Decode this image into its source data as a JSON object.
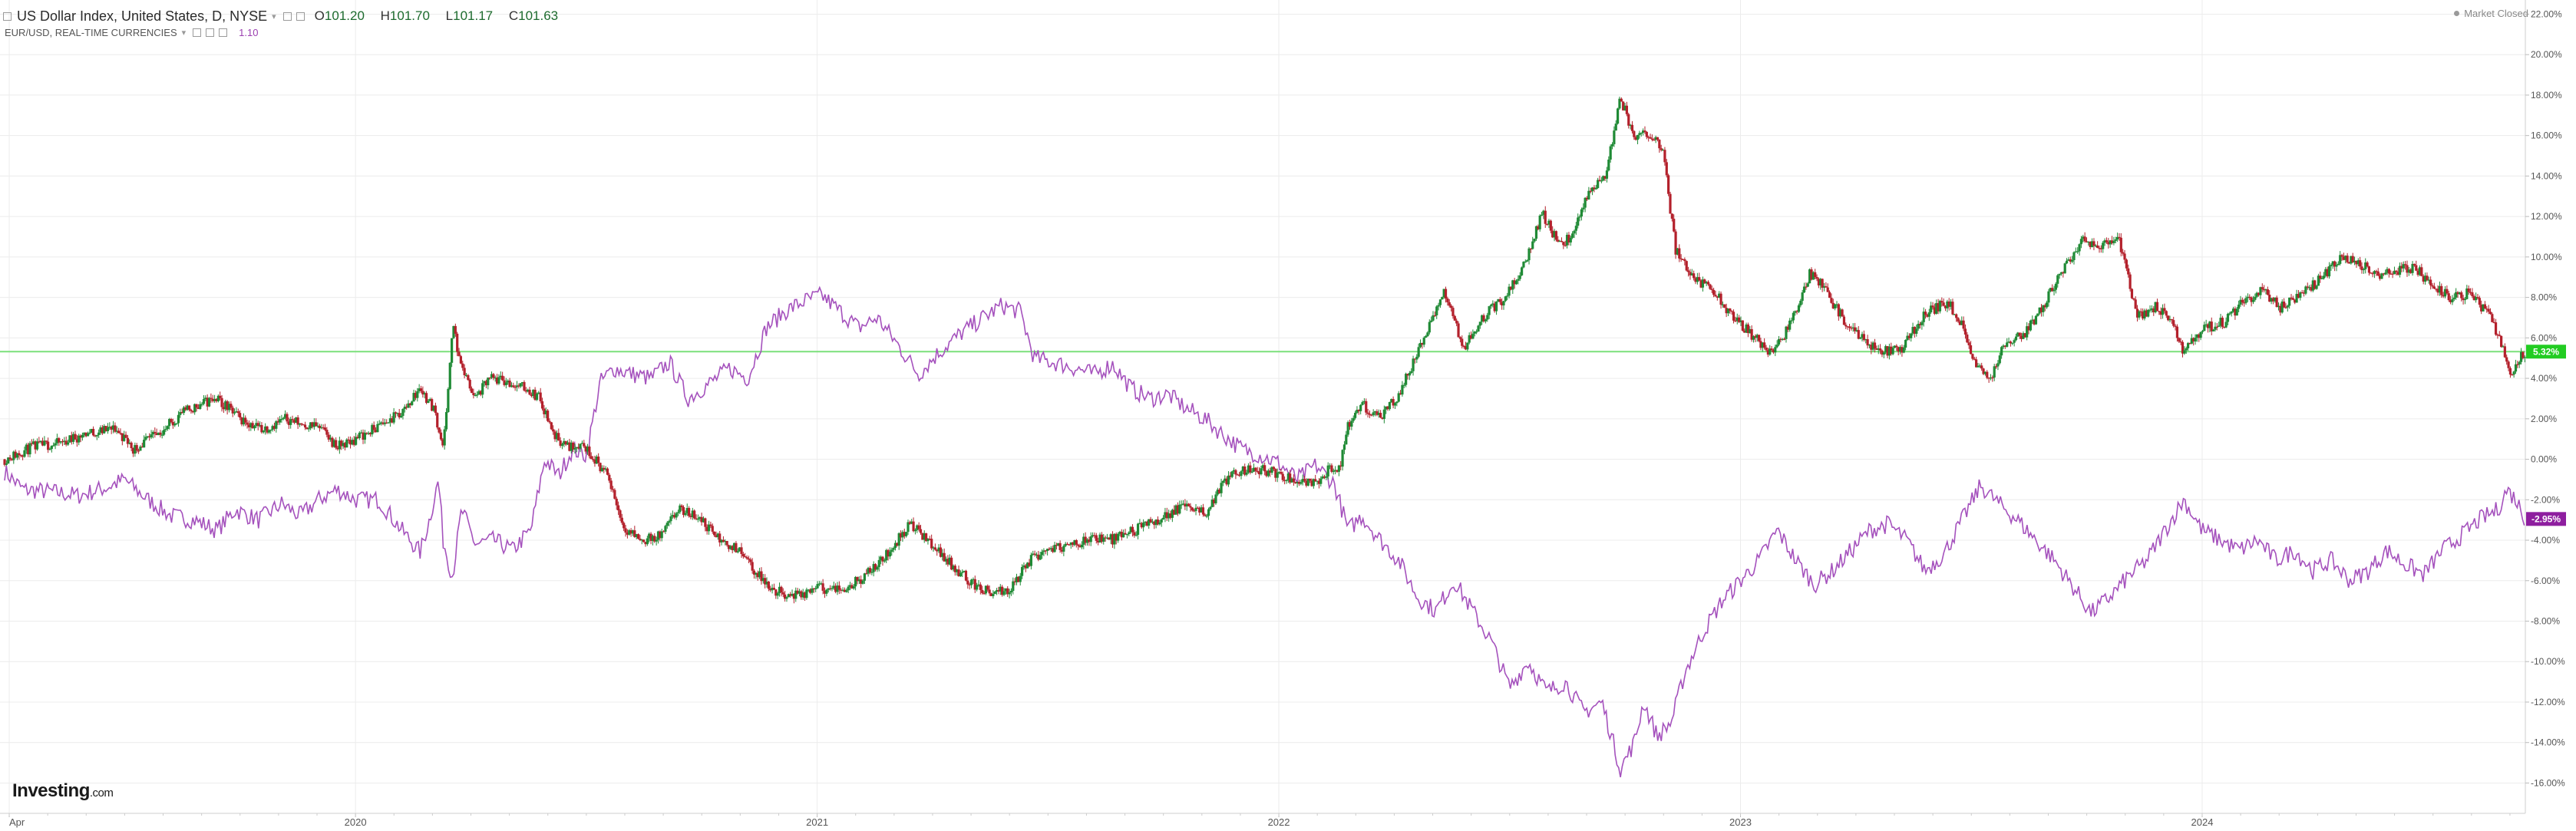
{
  "header": {
    "title": "US Dollar Index, United States, D, NYSE",
    "open_label": "O",
    "open": "101.20",
    "high_label": "H",
    "high": "101.70",
    "low_label": "L",
    "low": "101.17",
    "close_label": "C",
    "close": "101.63",
    "secondary_title": "EUR/USD, REAL-TIME CURRENCIES",
    "secondary_value": "1.10"
  },
  "status": {
    "market": "Market Closed"
  },
  "brand": {
    "name": "Investing",
    "suffix": ".com"
  },
  "colors": {
    "up": "#1f8a35",
    "down": "#b3202b",
    "eurusd": "#a552bd",
    "current_line": "#7be07b",
    "badge_dxy": "#22cc22",
    "badge_eur": "#8e1e9f",
    "grid": "#ececec"
  },
  "chart_data": {
    "type": "line",
    "y_axis": {
      "unit": "%",
      "ylim": [
        -17.5,
        22.7
      ],
      "ticks": [
        "22.00%",
        "20.00%",
        "18.00%",
        "16.00%",
        "14.00%",
        "12.00%",
        "10.00%",
        "8.00%",
        "6.00%",
        "4.00%",
        "2.00%",
        "0.00%",
        "-2.00%",
        "-4.00%",
        "-6.00%",
        "-8.00%",
        "-10.00%",
        "-12.00%",
        "-14.00%",
        "-16.00%"
      ],
      "tick_values": [
        22,
        20,
        18,
        16,
        14,
        12,
        10,
        8,
        6,
        4,
        2,
        0,
        -2,
        -4,
        -6,
        -8,
        -10,
        -12,
        -14,
        -16
      ],
      "position": "right"
    },
    "x_axis": {
      "labels": [
        "Apr",
        "2020",
        "2021",
        "2022",
        "2023",
        "2024"
      ],
      "label_dates": [
        2019.25,
        2020.0,
        2021.0,
        2022.0,
        2023.0,
        2024.0
      ],
      "xlim": [
        2019.23,
        2024.7
      ]
    },
    "grid": true,
    "series": [
      {
        "name": "US Dollar Index",
        "style": "candlestick",
        "points": [
          [
            2019.24,
            0.0
          ],
          [
            2019.3,
            0.6
          ],
          [
            2019.36,
            0.8
          ],
          [
            2019.42,
            1.3
          ],
          [
            2019.48,
            1.5
          ],
          [
            2019.52,
            0.5
          ],
          [
            2019.57,
            1.2
          ],
          [
            2019.62,
            2.2
          ],
          [
            2019.66,
            2.7
          ],
          [
            2019.7,
            3.0
          ],
          [
            2019.75,
            2.0
          ],
          [
            2019.8,
            1.5
          ],
          [
            2019.85,
            2.0
          ],
          [
            2019.88,
            1.8
          ],
          [
            2019.92,
            1.6
          ],
          [
            2019.96,
            0.6
          ],
          [
            2020.0,
            1.0
          ],
          [
            2020.05,
            1.6
          ],
          [
            2020.1,
            2.3
          ],
          [
            2020.14,
            3.5
          ],
          [
            2020.17,
            2.5
          ],
          [
            2020.19,
            0.6
          ],
          [
            2020.2,
            3.0
          ],
          [
            2020.21,
            6.7
          ],
          [
            2020.23,
            4.5
          ],
          [
            2020.26,
            3.0
          ],
          [
            2020.29,
            4.0
          ],
          [
            2020.33,
            3.8
          ],
          [
            2020.37,
            3.5
          ],
          [
            2020.4,
            3.0
          ],
          [
            2020.43,
            1.2
          ],
          [
            2020.46,
            0.6
          ],
          [
            2020.49,
            0.8
          ],
          [
            2020.52,
            0.0
          ],
          [
            2020.55,
            -1.0
          ],
          [
            2020.58,
            -3.3
          ],
          [
            2020.62,
            -4.0
          ],
          [
            2020.66,
            -3.8
          ],
          [
            2020.7,
            -2.5
          ],
          [
            2020.74,
            -2.8
          ],
          [
            2020.79,
            -4.0
          ],
          [
            2020.83,
            -4.5
          ],
          [
            2020.87,
            -5.7
          ],
          [
            2020.91,
            -6.5
          ],
          [
            2020.96,
            -6.8
          ],
          [
            2021.0,
            -6.3
          ],
          [
            2021.04,
            -6.5
          ],
          [
            2021.09,
            -6.0
          ],
          [
            2021.14,
            -5.0
          ],
          [
            2021.2,
            -3.2
          ],
          [
            2021.24,
            -4.0
          ],
          [
            2021.29,
            -5.2
          ],
          [
            2021.34,
            -6.2
          ],
          [
            2021.38,
            -6.7
          ],
          [
            2021.42,
            -6.4
          ],
          [
            2021.46,
            -5.0
          ],
          [
            2021.5,
            -4.4
          ],
          [
            2021.55,
            -4.3
          ],
          [
            2021.6,
            -3.8
          ],
          [
            2021.64,
            -4.0
          ],
          [
            2021.69,
            -3.5
          ],
          [
            2021.74,
            -3.0
          ],
          [
            2021.79,
            -2.3
          ],
          [
            2021.84,
            -2.7
          ],
          [
            2021.88,
            -1.2
          ],
          [
            2021.92,
            -0.5
          ],
          [
            2021.96,
            -0.5
          ],
          [
            2022.0,
            -0.7
          ],
          [
            2022.04,
            -1.0
          ],
          [
            2022.08,
            -1.2
          ],
          [
            2022.11,
            -0.5
          ],
          [
            2022.13,
            -0.6
          ],
          [
            2022.15,
            1.6
          ],
          [
            2022.18,
            2.7
          ],
          [
            2022.22,
            2.0
          ],
          [
            2022.26,
            3.2
          ],
          [
            2022.3,
            5.2
          ],
          [
            2022.33,
            6.8
          ],
          [
            2022.36,
            8.3
          ],
          [
            2022.4,
            5.5
          ],
          [
            2022.44,
            7.0
          ],
          [
            2022.49,
            8.0
          ],
          [
            2022.53,
            9.5
          ],
          [
            2022.57,
            12.2
          ],
          [
            2022.61,
            10.5
          ],
          [
            2022.64,
            11.2
          ],
          [
            2022.67,
            13.2
          ],
          [
            2022.71,
            14.2
          ],
          [
            2022.74,
            17.8
          ],
          [
            2022.77,
            16.0
          ],
          [
            2022.8,
            16.2
          ],
          [
            2022.83,
            15.5
          ],
          [
            2022.86,
            10.3
          ],
          [
            2022.9,
            9.0
          ],
          [
            2022.94,
            8.3
          ],
          [
            2022.98,
            7.2
          ],
          [
            2023.03,
            6.0
          ],
          [
            2023.07,
            5.2
          ],
          [
            2023.11,
            6.8
          ],
          [
            2023.15,
            9.2
          ],
          [
            2023.18,
            8.5
          ],
          [
            2023.22,
            7.0
          ],
          [
            2023.26,
            6.0
          ],
          [
            2023.31,
            5.3
          ],
          [
            2023.35,
            5.5
          ],
          [
            2023.4,
            7.2
          ],
          [
            2023.45,
            7.8
          ],
          [
            2023.48,
            6.6
          ],
          [
            2023.51,
            4.7
          ],
          [
            2023.54,
            4.0
          ],
          [
            2023.57,
            5.5
          ],
          [
            2023.62,
            6.3
          ],
          [
            2023.66,
            7.8
          ],
          [
            2023.7,
            9.5
          ],
          [
            2023.74,
            10.8
          ],
          [
            2023.78,
            10.5
          ],
          [
            2023.82,
            10.8
          ],
          [
            2023.86,
            7.0
          ],
          [
            2023.9,
            7.6
          ],
          [
            2023.94,
            6.7
          ],
          [
            2023.96,
            5.2
          ],
          [
            2024.0,
            6.4
          ],
          [
            2024.05,
            6.8
          ],
          [
            2024.09,
            7.8
          ],
          [
            2024.13,
            8.3
          ],
          [
            2024.17,
            7.5
          ],
          [
            2024.21,
            8.0
          ],
          [
            2024.26,
            9.0
          ],
          [
            2024.3,
            10.0
          ],
          [
            2024.34,
            9.7
          ],
          [
            2024.38,
            9.0
          ],
          [
            2024.42,
            9.3
          ],
          [
            2024.46,
            9.5
          ],
          [
            2024.5,
            8.5
          ],
          [
            2024.54,
            8.0
          ],
          [
            2024.58,
            8.2
          ],
          [
            2024.62,
            7.2
          ],
          [
            2024.65,
            5.5
          ],
          [
            2024.67,
            4.2
          ],
          [
            2024.69,
            5.0
          ],
          [
            2024.7,
            5.32
          ]
        ],
        "last_value_label": "5.32%",
        "last_value": 5.32
      },
      {
        "name": "EUR/USD",
        "style": "line",
        "points": [
          [
            2019.24,
            -0.6
          ],
          [
            2019.28,
            -1.5
          ],
          [
            2019.34,
            -1.6
          ],
          [
            2019.4,
            -1.8
          ],
          [
            2019.46,
            -1.4
          ],
          [
            2019.5,
            -1.0
          ],
          [
            2019.55,
            -2.0
          ],
          [
            2019.6,
            -2.8
          ],
          [
            2019.65,
            -3.0
          ],
          [
            2019.7,
            -3.5
          ],
          [
            2019.74,
            -2.5
          ],
          [
            2019.79,
            -3.0
          ],
          [
            2019.84,
            -2.2
          ],
          [
            2019.88,
            -2.8
          ],
          [
            2019.92,
            -2.0
          ],
          [
            2019.96,
            -1.5
          ],
          [
            2020.0,
            -2.0
          ],
          [
            2020.05,
            -2.0
          ],
          [
            2020.1,
            -3.5
          ],
          [
            2020.14,
            -4.6
          ],
          [
            2020.16,
            -3.0
          ],
          [
            2020.18,
            -1.0
          ],
          [
            2020.19,
            -4.0
          ],
          [
            2020.21,
            -5.8
          ],
          [
            2020.23,
            -2.5
          ],
          [
            2020.26,
            -4.2
          ],
          [
            2020.3,
            -4.0
          ],
          [
            2020.34,
            -4.5
          ],
          [
            2020.38,
            -3.5
          ],
          [
            2020.41,
            0.0
          ],
          [
            2020.44,
            -0.8
          ],
          [
            2020.47,
            0.5
          ],
          [
            2020.5,
            0.2
          ],
          [
            2020.53,
            3.8
          ],
          [
            2020.56,
            4.5
          ],
          [
            2020.6,
            4.2
          ],
          [
            2020.64,
            4.0
          ],
          [
            2020.68,
            4.8
          ],
          [
            2020.72,
            3.0
          ],
          [
            2020.77,
            3.8
          ],
          [
            2020.81,
            4.5
          ],
          [
            2020.85,
            4.0
          ],
          [
            2020.89,
            6.5
          ],
          [
            2020.93,
            7.3
          ],
          [
            2020.97,
            7.8
          ],
          [
            2021.01,
            8.1
          ],
          [
            2021.05,
            7.3
          ],
          [
            2021.09,
            6.5
          ],
          [
            2021.13,
            7.0
          ],
          [
            2021.17,
            5.8
          ],
          [
            2021.22,
            4.2
          ],
          [
            2021.26,
            5.2
          ],
          [
            2021.31,
            6.2
          ],
          [
            2021.36,
            7.0
          ],
          [
            2021.4,
            7.6
          ],
          [
            2021.44,
            7.3
          ],
          [
            2021.47,
            5.0
          ],
          [
            2021.51,
            4.8
          ],
          [
            2021.56,
            4.5
          ],
          [
            2021.6,
            4.2
          ],
          [
            2021.64,
            4.7
          ],
          [
            2021.68,
            3.5
          ],
          [
            2021.72,
            3.0
          ],
          [
            2021.76,
            3.2
          ],
          [
            2021.8,
            2.5
          ],
          [
            2021.84,
            2.0
          ],
          [
            2021.88,
            1.2
          ],
          [
            2021.92,
            0.5
          ],
          [
            2021.96,
            0.2
          ],
          [
            2022.0,
            -0.2
          ],
          [
            2022.04,
            -1.0
          ],
          [
            2022.08,
            -0.3
          ],
          [
            2022.12,
            -1.2
          ],
          [
            2022.15,
            -3.5
          ],
          [
            2022.18,
            -2.8
          ],
          [
            2022.22,
            -4.0
          ],
          [
            2022.26,
            -5.0
          ],
          [
            2022.3,
            -6.8
          ],
          [
            2022.34,
            -7.5
          ],
          [
            2022.38,
            -6.0
          ],
          [
            2022.42,
            -7.5
          ],
          [
            2022.46,
            -9.0
          ],
          [
            2022.5,
            -11.3
          ],
          [
            2022.54,
            -10.0
          ],
          [
            2022.58,
            -11.5
          ],
          [
            2022.62,
            -11.0
          ],
          [
            2022.66,
            -12.5
          ],
          [
            2022.7,
            -12.0
          ],
          [
            2022.74,
            -15.3
          ],
          [
            2022.77,
            -14.0
          ],
          [
            2022.79,
            -12.0
          ],
          [
            2022.82,
            -13.7
          ],
          [
            2022.85,
            -13.0
          ],
          [
            2022.88,
            -10.5
          ],
          [
            2022.92,
            -8.5
          ],
          [
            2022.96,
            -7.0
          ],
          [
            2023.0,
            -6.0
          ],
          [
            2023.04,
            -5.0
          ],
          [
            2023.08,
            -3.5
          ],
          [
            2023.12,
            -5.0
          ],
          [
            2023.16,
            -6.2
          ],
          [
            2023.2,
            -5.5
          ],
          [
            2023.24,
            -4.5
          ],
          [
            2023.28,
            -3.5
          ],
          [
            2023.32,
            -3.2
          ],
          [
            2023.36,
            -4.0
          ],
          [
            2023.4,
            -5.5
          ],
          [
            2023.44,
            -4.7
          ],
          [
            2023.48,
            -3.0
          ],
          [
            2023.52,
            -1.3
          ],
          [
            2023.56,
            -2.2
          ],
          [
            2023.6,
            -3.0
          ],
          [
            2023.64,
            -4.0
          ],
          [
            2023.68,
            -5.0
          ],
          [
            2023.72,
            -6.3
          ],
          [
            2023.76,
            -7.6
          ],
          [
            2023.8,
            -6.8
          ],
          [
            2023.84,
            -5.8
          ],
          [
            2023.88,
            -5.0
          ],
          [
            2023.92,
            -3.5
          ],
          [
            2023.96,
            -2.0
          ],
          [
            2024.0,
            -3.5
          ],
          [
            2024.04,
            -4.0
          ],
          [
            2024.08,
            -4.5
          ],
          [
            2024.12,
            -4.0
          ],
          [
            2024.16,
            -5.0
          ],
          [
            2024.2,
            -4.5
          ],
          [
            2024.24,
            -5.5
          ],
          [
            2024.28,
            -5.0
          ],
          [
            2024.32,
            -6.0
          ],
          [
            2024.36,
            -5.5
          ],
          [
            2024.4,
            -4.5
          ],
          [
            2024.44,
            -5.2
          ],
          [
            2024.48,
            -5.7
          ],
          [
            2024.52,
            -4.5
          ],
          [
            2024.56,
            -3.8
          ],
          [
            2024.6,
            -3.0
          ],
          [
            2024.64,
            -2.5
          ],
          [
            2024.66,
            -1.5
          ],
          [
            2024.68,
            -2.0
          ],
          [
            2024.7,
            -2.95
          ]
        ],
        "last_value_label": "-2.95%",
        "last_value": -2.95
      }
    ]
  }
}
